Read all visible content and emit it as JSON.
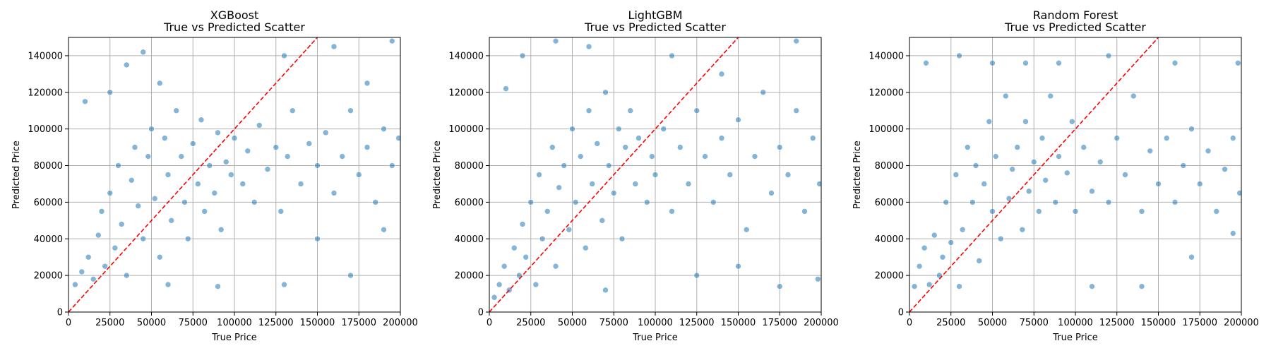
{
  "figure": {
    "colors": {
      "point": "#1f77b4",
      "point_edge": "#ffffff",
      "reference": "#ff0000",
      "grid": "#b0b0b0",
      "axes": "#000000"
    }
  },
  "chart_data": [
    {
      "type": "scatter",
      "title_line1": "XGBoost",
      "title_line2": "True vs Predicted Scatter",
      "xlabel": "True Price",
      "ylabel": "Predicted Price",
      "xlim": [
        0,
        200000
      ],
      "ylim": [
        0,
        150000
      ],
      "xticks": [
        0,
        25000,
        50000,
        75000,
        100000,
        125000,
        150000,
        175000,
        200000
      ],
      "yticks": [
        0,
        20000,
        40000,
        60000,
        80000,
        100000,
        120000,
        140000
      ],
      "grid": true,
      "reference_line": {
        "from": [
          0,
          0
        ],
        "to": [
          150000,
          150000
        ]
      },
      "series": [
        {
          "points": [
            [
              4000,
              15000
            ],
            [
              8000,
              22000
            ],
            [
              12000,
              30000
            ],
            [
              15000,
              18000
            ],
            [
              18000,
              42000
            ],
            [
              20000,
              55000
            ],
            [
              22000,
              25000
            ],
            [
              25000,
              65000
            ],
            [
              28000,
              35000
            ],
            [
              30000,
              80000
            ],
            [
              32000,
              48000
            ],
            [
              35000,
              20000
            ],
            [
              38000,
              72000
            ],
            [
              40000,
              90000
            ],
            [
              42000,
              58000
            ],
            [
              45000,
              40000
            ],
            [
              48000,
              85000
            ],
            [
              50000,
              100000
            ],
            [
              52000,
              62000
            ],
            [
              55000,
              30000
            ],
            [
              58000,
              95000
            ],
            [
              60000,
              75000
            ],
            [
              62000,
              50000
            ],
            [
              65000,
              110000
            ],
            [
              68000,
              85000
            ],
            [
              70000,
              60000
            ],
            [
              72000,
              40000
            ],
            [
              75000,
              92000
            ],
            [
              78000,
              70000
            ],
            [
              80000,
              105000
            ],
            [
              82000,
              55000
            ],
            [
              85000,
              80000
            ],
            [
              88000,
              65000
            ],
            [
              90000,
              98000
            ],
            [
              92000,
              45000
            ],
            [
              95000,
              82000
            ],
            [
              98000,
              75000
            ],
            [
              100000,
              95000
            ],
            [
              105000,
              70000
            ],
            [
              108000,
              88000
            ],
            [
              112000,
              60000
            ],
            [
              115000,
              102000
            ],
            [
              120000,
              78000
            ],
            [
              125000,
              90000
            ],
            [
              128000,
              55000
            ],
            [
              132000,
              85000
            ],
            [
              135000,
              110000
            ],
            [
              140000,
              70000
            ],
            [
              145000,
              92000
            ],
            [
              150000,
              80000
            ],
            [
              155000,
              98000
            ],
            [
              160000,
              65000
            ],
            [
              165000,
              85000
            ],
            [
              170000,
              110000
            ],
            [
              175000,
              75000
            ],
            [
              180000,
              90000
            ],
            [
              185000,
              60000
            ],
            [
              190000,
              100000
            ],
            [
              195000,
              80000
            ],
            [
              199000,
              95000
            ],
            [
              10000,
              115000
            ],
            [
              25000,
              120000
            ],
            [
              35000,
              135000
            ],
            [
              45000,
              142000
            ],
            [
              55000,
              125000
            ],
            [
              130000,
              140000
            ],
            [
              160000,
              145000
            ],
            [
              180000,
              125000
            ],
            [
              60000,
              15000
            ],
            [
              150000,
              40000
            ],
            [
              170000,
              20000
            ],
            [
              190000,
              45000
            ],
            [
              130000,
              15000
            ],
            [
              90000,
              14000
            ],
            [
              195000,
              148000
            ]
          ]
        }
      ]
    },
    {
      "type": "scatter",
      "title_line1": "LightGBM",
      "title_line2": "True vs Predicted Scatter",
      "xlabel": "True Price",
      "ylabel": "Predicted Price",
      "xlim": [
        0,
        200000
      ],
      "ylim": [
        0,
        150000
      ],
      "xticks": [
        0,
        25000,
        50000,
        75000,
        100000,
        125000,
        150000,
        175000,
        200000
      ],
      "yticks": [
        0,
        20000,
        40000,
        60000,
        80000,
        100000,
        120000,
        140000
      ],
      "grid": true,
      "reference_line": {
        "from": [
          0,
          0
        ],
        "to": [
          150000,
          150000
        ]
      },
      "series": [
        {
          "points": [
            [
              3000,
              8000
            ],
            [
              6000,
              15000
            ],
            [
              9000,
              25000
            ],
            [
              12000,
              12000
            ],
            [
              15000,
              35000
            ],
            [
              18000,
              20000
            ],
            [
              20000,
              48000
            ],
            [
              22000,
              30000
            ],
            [
              25000,
              60000
            ],
            [
              28000,
              15000
            ],
            [
              30000,
              75000
            ],
            [
              32000,
              40000
            ],
            [
              35000,
              55000
            ],
            [
              38000,
              90000
            ],
            [
              40000,
              25000
            ],
            [
              42000,
              68000
            ],
            [
              45000,
              80000
            ],
            [
              48000,
              45000
            ],
            [
              50000,
              100000
            ],
            [
              52000,
              60000
            ],
            [
              55000,
              85000
            ],
            [
              58000,
              35000
            ],
            [
              60000,
              110000
            ],
            [
              62000,
              70000
            ],
            [
              65000,
              92000
            ],
            [
              68000,
              50000
            ],
            [
              70000,
              120000
            ],
            [
              72000,
              80000
            ],
            [
              75000,
              65000
            ],
            [
              78000,
              100000
            ],
            [
              80000,
              40000
            ],
            [
              82000,
              90000
            ],
            [
              85000,
              110000
            ],
            [
              88000,
              70000
            ],
            [
              90000,
              95000
            ],
            [
              95000,
              60000
            ],
            [
              98000,
              85000
            ],
            [
              100000,
              75000
            ],
            [
              105000,
              100000
            ],
            [
              110000,
              55000
            ],
            [
              115000,
              90000
            ],
            [
              120000,
              70000
            ],
            [
              125000,
              110000
            ],
            [
              130000,
              85000
            ],
            [
              135000,
              60000
            ],
            [
              140000,
              95000
            ],
            [
              145000,
              75000
            ],
            [
              150000,
              105000
            ],
            [
              155000,
              45000
            ],
            [
              160000,
              85000
            ],
            [
              165000,
              120000
            ],
            [
              170000,
              65000
            ],
            [
              175000,
              90000
            ],
            [
              180000,
              75000
            ],
            [
              185000,
              110000
            ],
            [
              190000,
              55000
            ],
            [
              195000,
              95000
            ],
            [
              199000,
              70000
            ],
            [
              10000,
              122000
            ],
            [
              20000,
              140000
            ],
            [
              40000,
              148000
            ],
            [
              60000,
              145000
            ],
            [
              125000,
              20000
            ],
            [
              150000,
              25000
            ],
            [
              175000,
              14000
            ],
            [
              198000,
              18000
            ],
            [
              110000,
              140000
            ],
            [
              185000,
              148000
            ],
            [
              70000,
              12000
            ],
            [
              140000,
              130000
            ]
          ]
        }
      ]
    },
    {
      "type": "scatter",
      "title_line1": "Random Forest",
      "title_line2": "True vs Predicted Scatter",
      "xlabel": "True Price",
      "ylabel": "Predicted Price",
      "xlim": [
        0,
        200000
      ],
      "ylim": [
        0,
        150000
      ],
      "xticks": [
        0,
        25000,
        50000,
        75000,
        100000,
        125000,
        150000,
        175000,
        200000
      ],
      "yticks": [
        0,
        20000,
        40000,
        60000,
        80000,
        100000,
        120000,
        140000
      ],
      "grid": true,
      "reference_line": {
        "from": [
          0,
          0
        ],
        "to": [
          150000,
          150000
        ]
      },
      "series": [
        {
          "points": [
            [
              3000,
              14000
            ],
            [
              6000,
              25000
            ],
            [
              9000,
              35000
            ],
            [
              12000,
              15000
            ],
            [
              15000,
              42000
            ],
            [
              18000,
              20000
            ],
            [
              20000,
              30000
            ],
            [
              22000,
              60000
            ],
            [
              25000,
              38000
            ],
            [
              28000,
              75000
            ],
            [
              30000,
              14000
            ],
            [
              32000,
              45000
            ],
            [
              35000,
              90000
            ],
            [
              38000,
              60000
            ],
            [
              40000,
              80000
            ],
            [
              42000,
              28000
            ],
            [
              45000,
              70000
            ],
            [
              48000,
              104000
            ],
            [
              50000,
              55000
            ],
            [
              52000,
              85000
            ],
            [
              55000,
              40000
            ],
            [
              58000,
              118000
            ],
            [
              60000,
              62000
            ],
            [
              62000,
              78000
            ],
            [
              65000,
              90000
            ],
            [
              68000,
              45000
            ],
            [
              70000,
              104000
            ],
            [
              72000,
              66000
            ],
            [
              75000,
              82000
            ],
            [
              78000,
              55000
            ],
            [
              80000,
              95000
            ],
            [
              82000,
              72000
            ],
            [
              85000,
              118000
            ],
            [
              88000,
              60000
            ],
            [
              90000,
              85000
            ],
            [
              95000,
              76000
            ],
            [
              98000,
              104000
            ],
            [
              100000,
              55000
            ],
            [
              105000,
              90000
            ],
            [
              110000,
              66000
            ],
            [
              115000,
              82000
            ],
            [
              120000,
              60000
            ],
            [
              125000,
              95000
            ],
            [
              130000,
              75000
            ],
            [
              135000,
              118000
            ],
            [
              140000,
              55000
            ],
            [
              145000,
              88000
            ],
            [
              150000,
              70000
            ],
            [
              155000,
              95000
            ],
            [
              160000,
              60000
            ],
            [
              165000,
              80000
            ],
            [
              170000,
              100000
            ],
            [
              175000,
              70000
            ],
            [
              180000,
              88000
            ],
            [
              185000,
              55000
            ],
            [
              190000,
              78000
            ],
            [
              195000,
              95000
            ],
            [
              199000,
              65000
            ],
            [
              10000,
              136000
            ],
            [
              30000,
              140000
            ],
            [
              50000,
              136000
            ],
            [
              70000,
              136000
            ],
            [
              90000,
              136000
            ],
            [
              120000,
              140000
            ],
            [
              160000,
              136000
            ],
            [
              198000,
              136000
            ],
            [
              140000,
              14000
            ],
            [
              110000,
              14000
            ],
            [
              170000,
              30000
            ],
            [
              195000,
              43000
            ]
          ]
        }
      ]
    }
  ]
}
